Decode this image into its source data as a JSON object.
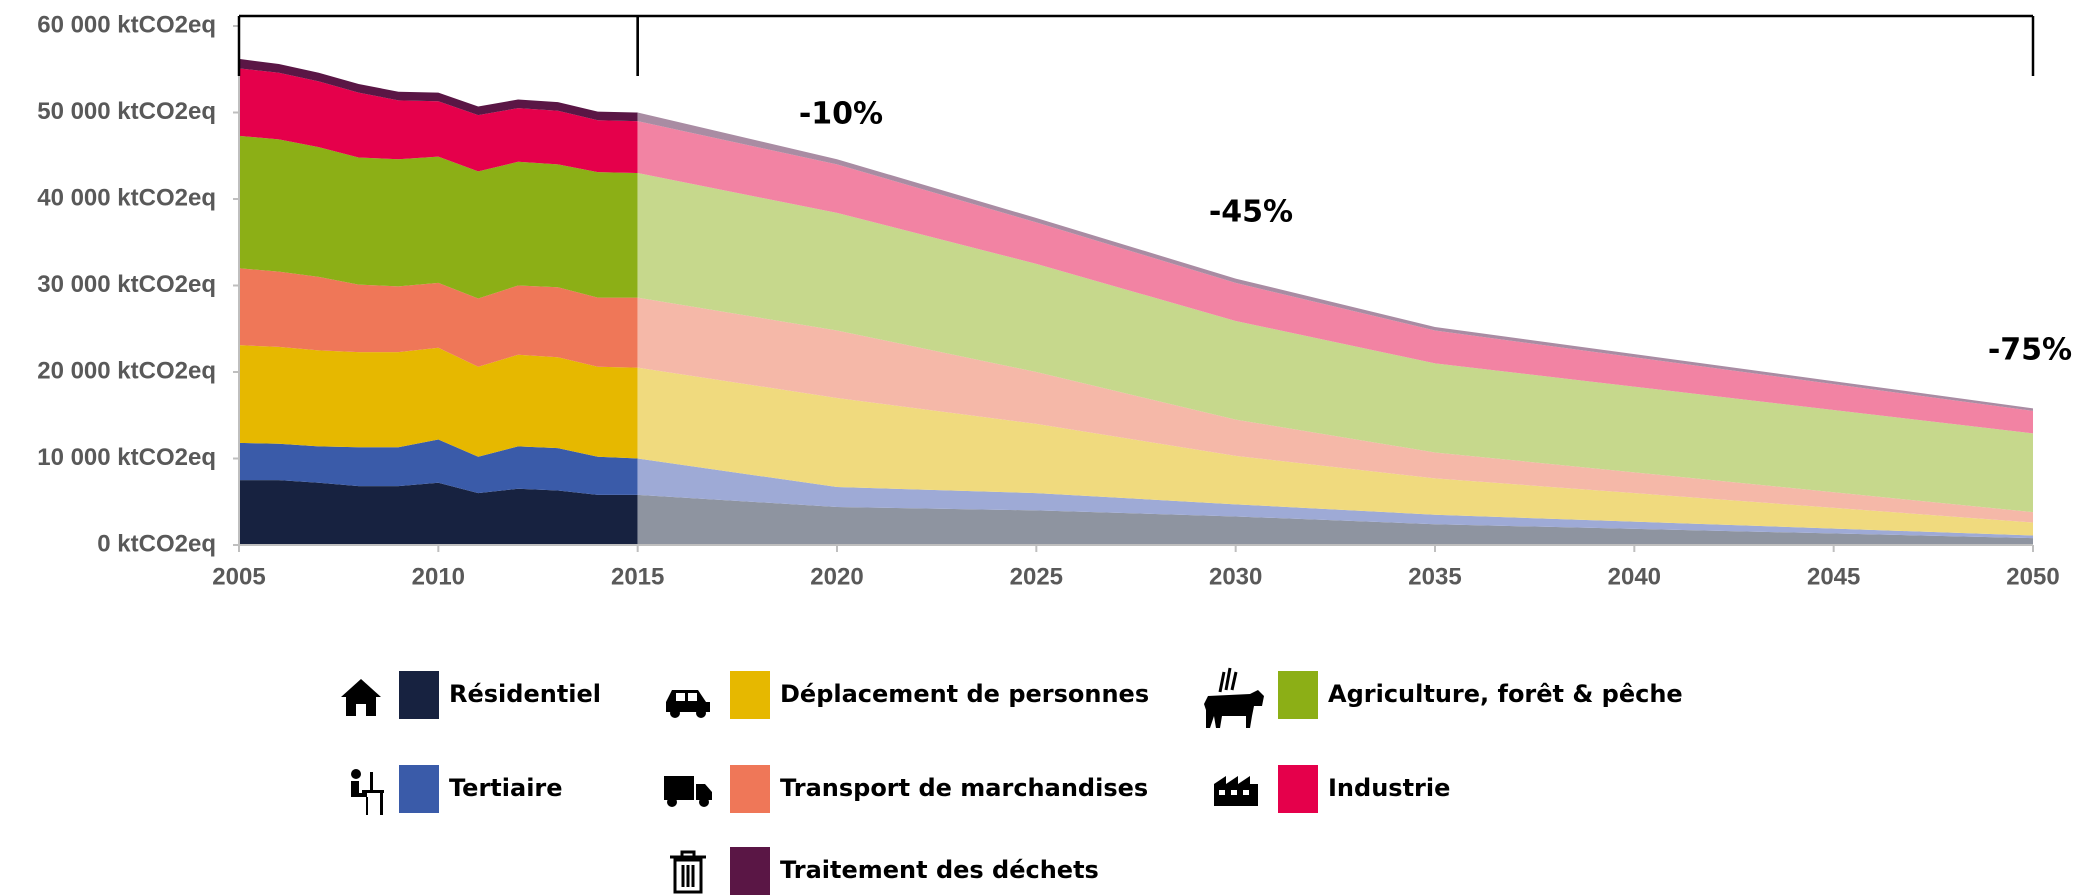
{
  "chart_data": {
    "type": "stacked_area",
    "x": [
      2005,
      2006,
      2007,
      2008,
      2009,
      2010,
      2011,
      2012,
      2013,
      2014,
      2015,
      2020,
      2025,
      2030,
      2035,
      2050
    ],
    "periods": [
      [
        2005,
        2015
      ],
      [
        2015,
        2050
      ]
    ],
    "series": [
      {
        "name": "Résidentiel",
        "color": "#172240",
        "projection_color": "#8e94a0",
        "values": [
          7500,
          7500,
          7200,
          6800,
          6800,
          7200,
          6000,
          6500,
          6300,
          5800,
          5800,
          4400,
          4000,
          3300,
          2400,
          800
        ]
      },
      {
        "name": "Tertiaire",
        "color": "#3a5ba9",
        "projection_color": "#9eaad6",
        "values": [
          4300,
          4200,
          4200,
          4500,
          4500,
          5000,
          4200,
          4900,
          4900,
          4400,
          4200,
          2300,
          2000,
          1400,
          1100,
          300
        ]
      },
      {
        "name": "Déplacement de personnes",
        "color": "#e6b800",
        "projection_color": "#f0da7e",
        "values": [
          11300,
          11200,
          11100,
          11000,
          11000,
          10600,
          10400,
          10600,
          10500,
          10400,
          10500,
          10300,
          8000,
          5600,
          4200,
          1500
        ]
      },
      {
        "name": "Transport de marchandises",
        "color": "#ef7758",
        "projection_color": "#f5b8a8",
        "values": [
          8900,
          8700,
          8500,
          7800,
          7600,
          7500,
          7900,
          8000,
          8100,
          8000,
          8100,
          7800,
          6000,
          4200,
          3000,
          1200
        ]
      },
      {
        "name": "Agriculture, forêt & pêche",
        "color": "#8caf16",
        "projection_color": "#c6d88c",
        "values": [
          15300,
          15300,
          15000,
          14700,
          14700,
          14600,
          14700,
          14300,
          14200,
          14500,
          14400,
          13600,
          12500,
          11400,
          10300,
          9100
        ]
      },
      {
        "name": "Industrie",
        "color": "#e5004b",
        "projection_color": "#f283a3",
        "values": [
          7800,
          7700,
          7600,
          7500,
          6800,
          6400,
          6500,
          6200,
          6200,
          6000,
          6000,
          5600,
          4800,
          4400,
          3800,
          2600
        ]
      },
      {
        "name": "Traitement des déchets",
        "color": "#5a1645",
        "projection_color": "#a98ca3",
        "values": [
          1100,
          1000,
          1000,
          1000,
          1000,
          1000,
          1000,
          1000,
          1000,
          1000,
          1000,
          600,
          500,
          500,
          400,
          300
        ]
      }
    ],
    "annotations": [
      "-10%",
      "-45%",
      "-75%"
    ],
    "xlim": [
      2005,
      2050
    ],
    "xticks": [
      2005,
      2010,
      2015,
      2020,
      2025,
      2030,
      2035,
      2040,
      2045,
      2050
    ],
    "ylim": [
      0,
      60000
    ],
    "yticks": [
      {
        "value": 0,
        "label": "0 ktCO2eq"
      },
      {
        "value": 10000,
        "label": "10 000 ktCO2eq"
      },
      {
        "value": 20000,
        "label": "20 000 ktCO2eq"
      },
      {
        "value": 30000,
        "label": "30 000 ktCO2eq"
      },
      {
        "value": 40000,
        "label": "40 000 ktCO2eq"
      },
      {
        "value": 50000,
        "label": "50 000 ktCO2eq"
      },
      {
        "value": 60000,
        "label": "60 000 ktCO2eq"
      }
    ]
  }
}
